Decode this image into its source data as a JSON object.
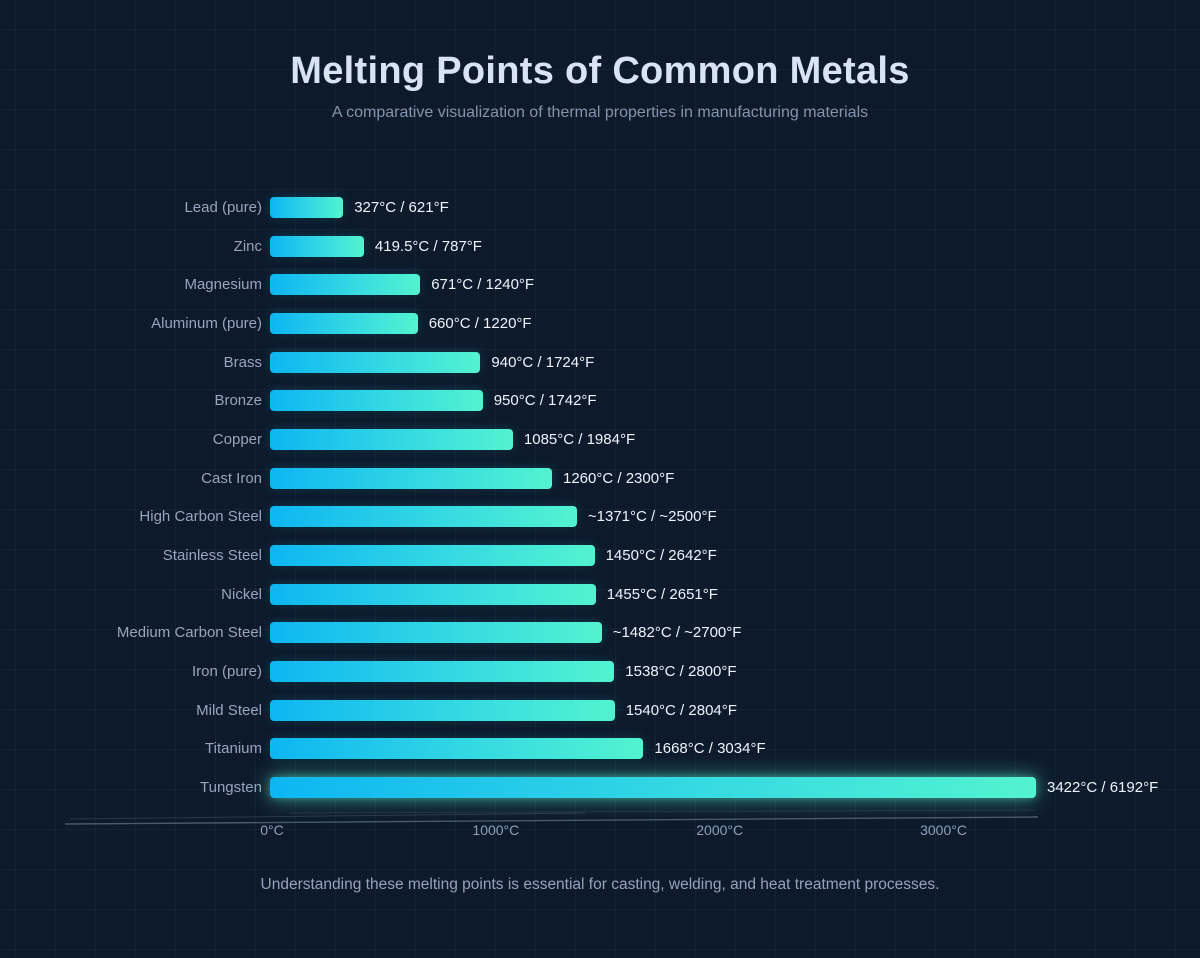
{
  "page": {
    "title": "Melting Points of Common Metals",
    "subtitle": "A comparative visualization of thermal properties in manufacturing materials",
    "footer": "Understanding these melting points is essential for casting, welding, and heat treatment processes."
  },
  "colors": {
    "background": "#0d1a2c",
    "title": "#d9e3f7",
    "subtitle": "#8294ac",
    "metal_label": "#96a5bd",
    "value_text": "#eef3fb",
    "bar_gradient_start": "#0db6f2",
    "bar_gradient_end": "#53f3d0",
    "axis_label": "#8da0ba"
  },
  "chart_data": {
    "type": "bar",
    "orientation": "horizontal",
    "title": "Melting Points of Common Metals",
    "legend": "none",
    "grid": "subtle background grid only",
    "xlim": [
      0,
      3422
    ],
    "x_tick_values": [
      0,
      1000,
      2000,
      3000
    ],
    "x_tick_labels": [
      "0°C",
      "1000°C",
      "2000°C",
      "3000°C"
    ],
    "categories": [
      "Lead (pure)",
      "Zinc",
      "Magnesium",
      "Aluminum (pure)",
      "Brass",
      "Bronze",
      "Copper",
      "Cast Iron",
      "High Carbon Steel",
      "Stainless Steel",
      "Nickel",
      "Medium Carbon Steel",
      "Iron (pure)",
      "Mild Steel",
      "Titanium",
      "Tungsten"
    ],
    "values_celsius": [
      327,
      419.5,
      671,
      660,
      940,
      950,
      1085,
      1260,
      1371,
      1450,
      1455,
      1482,
      1538,
      1540,
      1668,
      3422
    ],
    "value_labels": [
      "327°C / 621°F",
      "419.5°C / 787°F",
      "671°C / 1240°F",
      "660°C / 1220°F",
      "940°C / 1724°F",
      "950°C / 1742°F",
      "1085°C / 1984°F",
      "1260°C / 2300°F",
      "~1371°C / ~2500°F",
      "1450°C / 2642°F",
      "1455°C / 2651°F",
      "~1482°C / ~2700°F",
      "1538°C / 2800°F",
      "1540°C / 2804°F",
      "1668°C / 3034°F",
      "3422°C / 6192°F"
    ],
    "highlight_glow_category": "Tungsten"
  }
}
